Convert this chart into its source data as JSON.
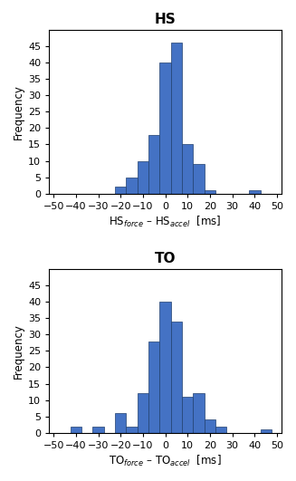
{
  "hs_centers": [
    -20,
    -15,
    -10,
    -5,
    0,
    5,
    10,
    15,
    20,
    25,
    40
  ],
  "hs_counts": [
    2,
    5,
    10,
    18,
    40,
    46,
    15,
    9,
    1,
    0,
    1
  ],
  "to_centers": [
    -40,
    -35,
    -30,
    -25,
    -20,
    -15,
    -10,
    -5,
    0,
    5,
    10,
    15,
    20,
    25,
    45
  ],
  "to_counts": [
    2,
    0,
    2,
    0,
    6,
    2,
    12,
    28,
    40,
    34,
    11,
    12,
    4,
    2,
    1
  ],
  "bin_width": 5,
  "bar_color": "#4472C4",
  "bar_edgecolor": "#1F3F6E",
  "xlim": [
    -52,
    52
  ],
  "xticks": [
    -50,
    -40,
    -30,
    -20,
    -10,
    0,
    10,
    20,
    30,
    40,
    50
  ],
  "ylim": [
    0,
    50
  ],
  "yticks": [
    0,
    5,
    10,
    15,
    20,
    25,
    30,
    35,
    40,
    45
  ],
  "title_hs": "HS",
  "title_to": "TO",
  "xlabel_hs": "HS$_{force}$ – HS$_{accel}$  [ms]",
  "xlabel_to": "TO$_{force}$ – TO$_{accel}$  [ms]",
  "ylabel": "Frequency",
  "title_fontsize": 11,
  "label_fontsize": 8.5,
  "tick_fontsize": 8
}
